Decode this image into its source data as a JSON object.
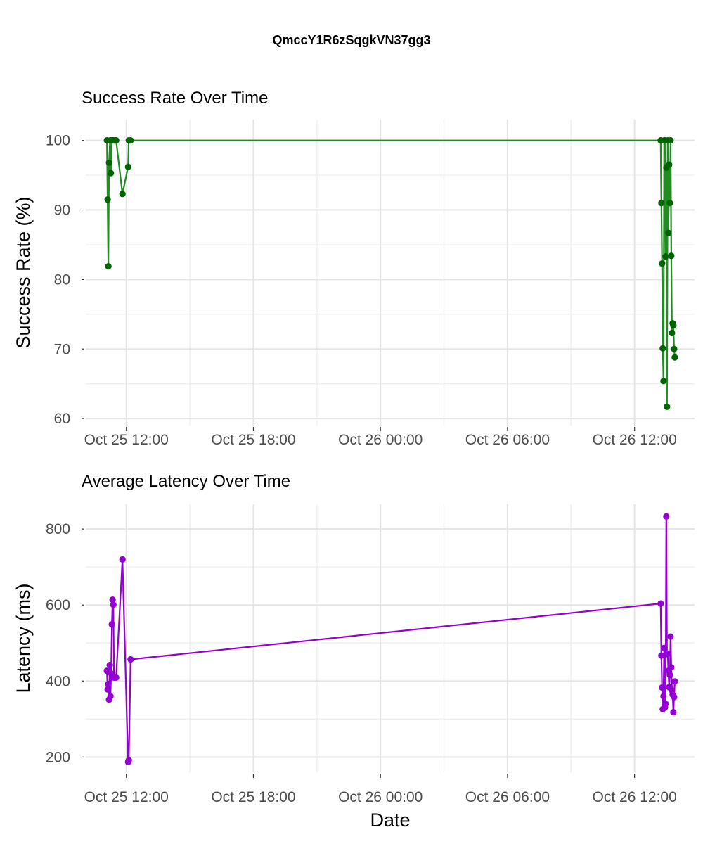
{
  "title": "QmccY1R6zSqgkVN37gg3",
  "chart_data": [
    {
      "type": "line",
      "title": "Success Rate Over Time",
      "xlabel": "",
      "ylabel": "Success Rate (%)",
      "xlim": [
        "2024-10-25T10:05",
        "2024-10-26T14:50"
      ],
      "ylim": [
        59,
        103
      ],
      "x_ticks": [
        "2024-10-25T12:00",
        "2024-10-25T18:00",
        "2024-10-26T00:00",
        "2024-10-26T06:00",
        "2024-10-26T12:00"
      ],
      "x_tick_labels": [
        "Oct 25 12:00",
        "Oct 25 18:00",
        "Oct 26 00:00",
        "Oct 26 06:00",
        "Oct 26 12:00"
      ],
      "y_ticks": [
        60,
        70,
        80,
        90,
        100
      ],
      "y_tick_labels": [
        "60",
        "70",
        "80",
        "90",
        "100"
      ],
      "grid": true,
      "colors": {
        "line": "#228B22",
        "point": "#006400"
      },
      "x": [
        "2024-10-25T11:05",
        "2024-10-25T11:07",
        "2024-10-25T11:09",
        "2024-10-25T11:11",
        "2024-10-25T11:14",
        "2024-10-25T11:16",
        "2024-10-25T11:19",
        "2024-10-25T11:21",
        "2024-10-25T11:24",
        "2024-10-25T11:27",
        "2024-10-25T11:31",
        "2024-10-25T11:49",
        "2024-10-25T12:05",
        "2024-10-25T12:07",
        "2024-10-25T12:12",
        "2024-10-26T13:14",
        "2024-10-26T13:16",
        "2024-10-26T13:18",
        "2024-10-26T13:20",
        "2024-10-26T13:22",
        "2024-10-26T13:24",
        "2024-10-26T13:26",
        "2024-10-26T13:28",
        "2024-10-26T13:30",
        "2024-10-26T13:32",
        "2024-10-26T13:34",
        "2024-10-26T13:36",
        "2024-10-26T13:38",
        "2024-10-26T13:40",
        "2024-10-26T13:42",
        "2024-10-26T13:44",
        "2024-10-26T13:46",
        "2024-10-26T13:48",
        "2024-10-26T13:50",
        "2024-10-26T13:52",
        "2024-10-26T13:54"
      ],
      "y": [
        100,
        91.5,
        81.9,
        96.8,
        100,
        95.3,
        100,
        100,
        100,
        100,
        100,
        92.3,
        96.2,
        100,
        100,
        100,
        91,
        82.3,
        70.1,
        65.4,
        100,
        100,
        83.3,
        96.1,
        61.7,
        100,
        86.7,
        96.5,
        91,
        100,
        83.4,
        72.3,
        73.7,
        73.4,
        70,
        68.8
      ]
    },
    {
      "type": "line",
      "title": "Average Latency Over Time",
      "xlabel": "Date",
      "ylabel": "Latency (ms)",
      "xlim": [
        "2024-10-25T10:05",
        "2024-10-26T14:50"
      ],
      "ylim": [
        160,
        865
      ],
      "x_ticks": [
        "2024-10-25T12:00",
        "2024-10-25T18:00",
        "2024-10-26T00:00",
        "2024-10-26T06:00",
        "2024-10-26T12:00"
      ],
      "x_tick_labels": [
        "Oct 25 12:00",
        "Oct 25 18:00",
        "Oct 26 00:00",
        "Oct 26 06:00",
        "Oct 26 12:00"
      ],
      "y_ticks": [
        200,
        400,
        600,
        800
      ],
      "y_tick_labels": [
        "200",
        "400",
        "600",
        "800"
      ],
      "grid": true,
      "colors": {
        "line": "#9400D3",
        "point": "#9400D3"
      },
      "x": [
        "2024-10-25T11:05",
        "2024-10-25T11:07",
        "2024-10-25T11:09",
        "2024-10-25T11:11",
        "2024-10-25T11:13",
        "2024-10-25T11:15",
        "2024-10-25T11:17",
        "2024-10-25T11:19",
        "2024-10-25T11:21",
        "2024-10-25T11:23",
        "2024-10-25T11:25",
        "2024-10-25T11:27",
        "2024-10-25T11:31",
        "2024-10-25T11:49",
        "2024-10-25T12:05",
        "2024-10-25T12:07",
        "2024-10-25T12:12",
        "2024-10-26T13:14",
        "2024-10-26T13:16",
        "2024-10-26T13:18",
        "2024-10-26T13:20",
        "2024-10-26T13:22",
        "2024-10-26T13:24",
        "2024-10-26T13:26",
        "2024-10-26T13:28",
        "2024-10-26T13:30",
        "2024-10-26T13:32",
        "2024-10-26T13:34",
        "2024-10-26T13:36",
        "2024-10-26T13:38",
        "2024-10-26T13:40",
        "2024-10-26T13:42",
        "2024-10-26T13:44",
        "2024-10-26T13:46",
        "2024-10-26T13:48",
        "2024-10-26T13:50",
        "2024-10-26T13:52",
        "2024-10-26T13:54"
      ],
      "y": [
        427,
        378,
        392,
        351,
        442,
        360,
        420,
        549,
        614,
        601,
        409,
        409,
        409,
        720,
        187,
        192,
        457,
        604,
        467,
        383,
        326,
        360,
        487,
        331,
        340,
        833,
        471,
        472,
        427,
        384,
        416,
        517,
        436,
        375,
        364,
        318,
        358,
        399
      ]
    }
  ]
}
